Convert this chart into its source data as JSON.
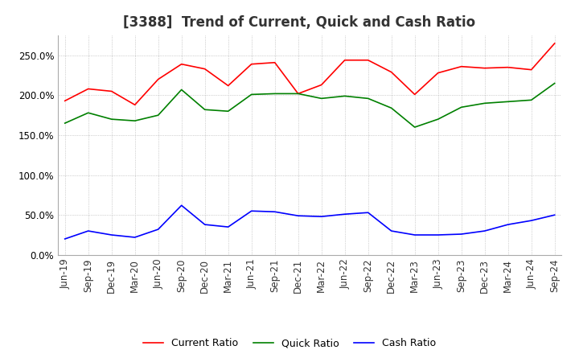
{
  "title": "[3388]  Trend of Current, Quick and Cash Ratio",
  "xlim_labels": [
    "Jun-19",
    "Sep-19",
    "Dec-19",
    "Mar-20",
    "Jun-20",
    "Sep-20",
    "Dec-20",
    "Mar-21",
    "Jun-21",
    "Sep-21",
    "Dec-21",
    "Mar-22",
    "Jun-22",
    "Sep-22",
    "Dec-22",
    "Mar-23",
    "Jun-23",
    "Sep-23",
    "Dec-23",
    "Mar-24",
    "Jun-24",
    "Sep-24"
  ],
  "current_ratio": [
    193,
    208,
    205,
    188,
    220,
    239,
    233,
    212,
    239,
    241,
    202,
    213,
    244,
    244,
    229,
    201,
    228,
    236,
    234,
    235,
    232,
    265
  ],
  "quick_ratio": [
    165,
    178,
    170,
    168,
    175,
    207,
    182,
    180,
    201,
    202,
    202,
    196,
    199,
    196,
    184,
    160,
    170,
    185,
    190,
    192,
    194,
    215
  ],
  "cash_ratio": [
    20,
    30,
    25,
    22,
    32,
    62,
    38,
    35,
    55,
    54,
    49,
    48,
    51,
    53,
    30,
    25,
    25,
    26,
    30,
    38,
    43,
    50
  ],
  "current_color": "#FF0000",
  "quick_color": "#008000",
  "cash_color": "#0000FF",
  "background_color": "#FFFFFF",
  "ylim": [
    0,
    275
  ],
  "yticks": [
    0,
    50,
    100,
    150,
    200,
    250
  ],
  "grid_color": "#AAAAAA",
  "title_fontsize": 12,
  "legend_fontsize": 9,
  "tick_fontsize": 8.5
}
